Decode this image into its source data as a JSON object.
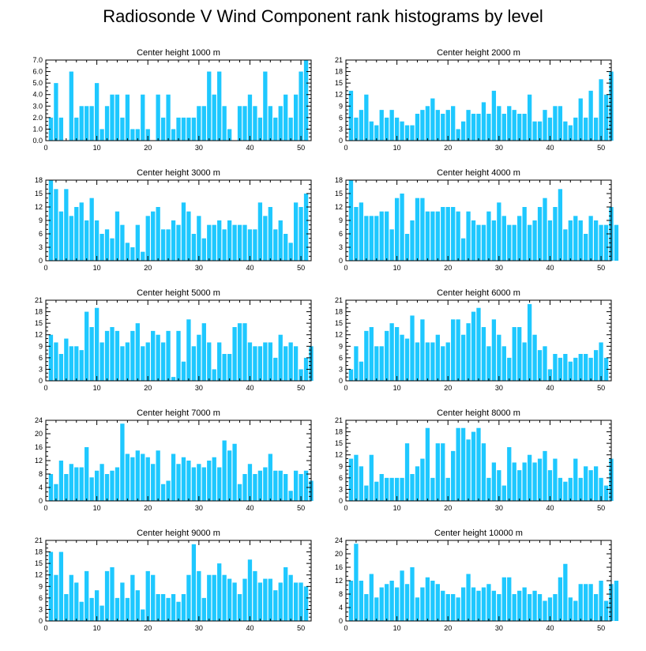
{
  "title": "Radiosonde V Wind Component rank histograms by level",
  "bar_color": "#1ec8ff",
  "chart_data": [
    {
      "type": "bar",
      "title": "Center height 1000 m",
      "xlim": [
        0,
        52
      ],
      "ylim": [
        0,
        7
      ],
      "xticks": [
        0,
        10,
        20,
        30,
        40,
        50
      ],
      "yticks": [
        "0.0",
        "1.0",
        "2.0",
        "3.0",
        "4.0",
        "5.0",
        "6.0",
        "7.0"
      ],
      "values": [
        2,
        5,
        2,
        0,
        6,
        2,
        3,
        3,
        3,
        5,
        1,
        3,
        4,
        4,
        2,
        4,
        1,
        1,
        4,
        1,
        0,
        4,
        2,
        4,
        1,
        2,
        2,
        2,
        2,
        3,
        3,
        6,
        4,
        6,
        3,
        1,
        0,
        3,
        3,
        4,
        3,
        2,
        6,
        3,
        2,
        3,
        4,
        2,
        4,
        6,
        7,
        0
      ]
    },
    {
      "type": "bar",
      "title": "Center height 2000 m",
      "xlim": [
        0,
        52
      ],
      "ylim": [
        0,
        21
      ],
      "xticks": [
        0,
        10,
        20,
        30,
        40,
        50
      ],
      "yticks": [
        "0",
        "3",
        "6",
        "9",
        "12",
        "15",
        "18",
        "21"
      ],
      "values": [
        13,
        6,
        8,
        12,
        5,
        4,
        8,
        6,
        8,
        6,
        5,
        4,
        4,
        7,
        8,
        9,
        11,
        8,
        7,
        8,
        9,
        3,
        5,
        8,
        7,
        7,
        10,
        7,
        13,
        9,
        7,
        9,
        8,
        7,
        7,
        12,
        5,
        5,
        8,
        6,
        9,
        9,
        5,
        4,
        6,
        11,
        6,
        13,
        6,
        16,
        12,
        18
      ]
    },
    {
      "type": "bar",
      "title": "Center height 3000 m",
      "xlim": [
        0,
        52
      ],
      "ylim": [
        0,
        18
      ],
      "xticks": [
        0,
        10,
        20,
        30,
        40,
        50
      ],
      "yticks": [
        "0",
        "3",
        "6",
        "9",
        "12",
        "15",
        "18"
      ],
      "values": [
        18,
        16,
        11,
        16,
        10,
        12,
        13,
        9,
        14,
        9,
        6,
        7,
        5,
        11,
        8,
        4,
        3,
        8,
        2,
        10,
        11,
        12,
        7,
        7,
        9,
        8,
        13,
        11,
        6,
        10,
        5,
        8,
        8,
        9,
        7,
        9,
        8,
        8,
        8,
        7,
        7,
        13,
        10,
        12,
        7,
        9,
        6,
        4,
        13,
        12,
        15,
        0
      ]
    },
    {
      "type": "bar",
      "title": "Center height 4000 m",
      "xlim": [
        0,
        52
      ],
      "ylim": [
        0,
        18
      ],
      "xticks": [
        0,
        10,
        20,
        30,
        40,
        50
      ],
      "yticks": [
        "0",
        "3",
        "6",
        "9",
        "12",
        "15",
        "18"
      ],
      "values": [
        18,
        12,
        13,
        10,
        10,
        10,
        11,
        11,
        7,
        14,
        15,
        6,
        9,
        14,
        14,
        11,
        11,
        11,
        12,
        12,
        12,
        11,
        5,
        11,
        9,
        8,
        8,
        11,
        9,
        13,
        10,
        8,
        8,
        10,
        12,
        8,
        9,
        12,
        14,
        9,
        12,
        16,
        7,
        9,
        10,
        9,
        6,
        10,
        9,
        8,
        8,
        12,
        8
      ]
    },
    {
      "type": "bar",
      "title": "Center height 5000 m",
      "xlim": [
        0,
        52
      ],
      "ylim": [
        0,
        21
      ],
      "xticks": [
        0,
        10,
        20,
        30,
        40,
        50
      ],
      "yticks": [
        "0",
        "3",
        "6",
        "9",
        "12",
        "15",
        "18",
        "21"
      ],
      "values": [
        12,
        10,
        7,
        11,
        9,
        9,
        8,
        18,
        14,
        19,
        10,
        13,
        14,
        13,
        9,
        10,
        13,
        15,
        9,
        10,
        13,
        12,
        10,
        13,
        1,
        13,
        5,
        16,
        9,
        12,
        15,
        10,
        3,
        10,
        7,
        7,
        14,
        15,
        15,
        10,
        9,
        9,
        10,
        10,
        6,
        12,
        9,
        10,
        9,
        3,
        6,
        9
      ]
    },
    {
      "type": "bar",
      "title": "Center height 6000 m",
      "xlim": [
        0,
        52
      ],
      "ylim": [
        0,
        21
      ],
      "xticks": [
        0,
        10,
        20,
        30,
        40,
        50
      ],
      "yticks": [
        "0",
        "3",
        "6",
        "9",
        "12",
        "15",
        "18",
        "21"
      ],
      "values": [
        3,
        9,
        5,
        13,
        14,
        9,
        9,
        13,
        15,
        14,
        12,
        11,
        17,
        10,
        16,
        10,
        10,
        12,
        9,
        10,
        16,
        16,
        12,
        15,
        18,
        19,
        14,
        9,
        16,
        12,
        9,
        6,
        14,
        14,
        10,
        20,
        12,
        8,
        9,
        3,
        7,
        6,
        7,
        5,
        6,
        7,
        7,
        6,
        8,
        10,
        6
      ]
    },
    {
      "type": "bar",
      "title": "Center height 7000 m",
      "xlim": [
        0,
        52
      ],
      "ylim": [
        0,
        24
      ],
      "xticks": [
        0,
        10,
        20,
        30,
        40,
        50
      ],
      "yticks": [
        "0",
        "4",
        "8",
        "12",
        "16",
        "20",
        "24"
      ],
      "values": [
        8,
        5,
        12,
        8,
        11,
        10,
        10,
        16,
        7,
        9,
        11,
        8,
        9,
        10,
        23,
        14,
        13,
        15,
        14,
        13,
        11,
        15,
        5,
        6,
        14,
        11,
        13,
        12,
        10,
        11,
        10,
        12,
        13,
        10,
        18,
        15,
        17,
        5,
        8,
        11,
        8,
        9,
        10,
        14,
        9,
        9,
        8,
        3,
        9,
        8,
        9,
        6
      ]
    },
    {
      "type": "bar",
      "title": "Center height 8000 m",
      "xlim": [
        0,
        52
      ],
      "ylim": [
        0,
        21
      ],
      "xticks": [
        0,
        10,
        20,
        30,
        40,
        50
      ],
      "yticks": [
        "0",
        "3",
        "6",
        "9",
        "12",
        "15",
        "18",
        "21"
      ],
      "values": [
        11,
        12,
        9,
        4,
        12,
        5,
        7,
        6,
        6,
        6,
        6,
        15,
        7,
        9,
        11,
        19,
        6,
        15,
        15,
        6,
        13,
        19,
        19,
        16,
        18,
        19,
        15,
        6,
        10,
        8,
        4,
        14,
        10,
        8,
        10,
        12,
        10,
        11,
        13,
        8,
        11,
        6,
        5,
        6,
        11,
        6,
        9,
        8,
        9,
        6,
        4,
        11
      ]
    },
    {
      "type": "bar",
      "title": "Center height 9000 m",
      "xlim": [
        0,
        52
      ],
      "ylim": [
        0,
        21
      ],
      "xticks": [
        0,
        10,
        20,
        30,
        40,
        50
      ],
      "yticks": [
        "0",
        "3",
        "6",
        "9",
        "12",
        "15",
        "18",
        "21"
      ],
      "values": [
        18,
        12,
        18,
        7,
        12,
        10,
        5,
        13,
        6,
        8,
        4,
        13,
        14,
        6,
        10,
        6,
        12,
        8,
        3,
        13,
        12,
        7,
        7,
        6,
        7,
        5,
        7,
        12,
        20,
        13,
        6,
        12,
        12,
        15,
        12,
        11,
        10,
        7,
        11,
        16,
        13,
        10,
        11,
        11,
        8,
        10,
        14,
        12,
        10,
        10,
        9
      ]
    },
    {
      "type": "bar",
      "title": "Center height 10000 m",
      "xlim": [
        0,
        52
      ],
      "ylim": [
        0,
        24
      ],
      "xticks": [
        0,
        10,
        20,
        30,
        40,
        50
      ],
      "yticks": [
        "0",
        "4",
        "8",
        "12",
        "16",
        "20",
        "24"
      ],
      "values": [
        12,
        23,
        12,
        8,
        14,
        7,
        10,
        11,
        12,
        10,
        15,
        11,
        16,
        7,
        10,
        13,
        12,
        11,
        9,
        8,
        8,
        7,
        10,
        14,
        10,
        9,
        10,
        11,
        9,
        8,
        13,
        13,
        8,
        9,
        10,
        8,
        9,
        8,
        6,
        7,
        8,
        13,
        17,
        7,
        6,
        11,
        11,
        11,
        8,
        12,
        6,
        11,
        12
      ]
    }
  ]
}
